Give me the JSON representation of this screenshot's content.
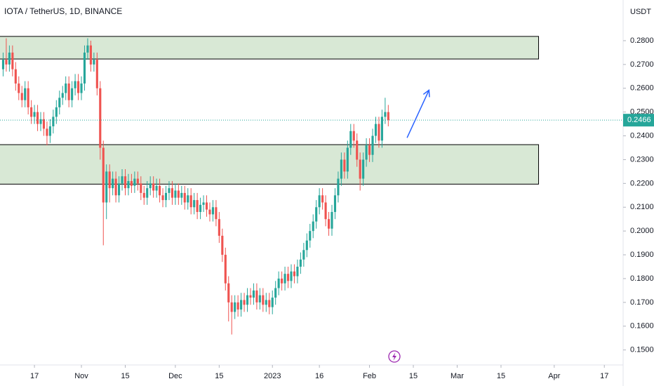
{
  "chart_data": {
    "type": "candlestick",
    "title": "IOTA / TetherUS, 1D, BINANCE",
    "y_axis_label": "USDT",
    "up_color": "#26a69a",
    "down_color": "#ef5350",
    "zone_color": "#d4e6d0",
    "arrow_color": "#2962ff",
    "xlim": [
      "2022-10-06",
      "2023-04-23"
    ],
    "ylim": [
      0.1437,
      0.2971
    ],
    "xticks": [
      {
        "value": "2022-10-17",
        "label": "17"
      },
      {
        "value": "2022-11-01",
        "label": "Nov"
      },
      {
        "value": "2022-11-15",
        "label": "15"
      },
      {
        "value": "2022-12-01",
        "label": "Dec"
      },
      {
        "value": "2022-12-15",
        "label": "15"
      },
      {
        "value": "2023-01-01",
        "label": "2023"
      },
      {
        "value": "2023-01-16",
        "label": "16"
      },
      {
        "value": "2023-02-01",
        "label": "Feb"
      },
      {
        "value": "2023-02-15",
        "label": "15"
      },
      {
        "value": "2023-03-01",
        "label": "Mar"
      },
      {
        "value": "2023-03-15",
        "label": "15"
      },
      {
        "value": "2023-04-01",
        "label": "Apr"
      },
      {
        "value": "2023-04-17",
        "label": "17"
      }
    ],
    "yticks": [
      {
        "value": 0.28,
        "label": "0.2800"
      },
      {
        "value": 0.27,
        "label": "0.2700"
      },
      {
        "value": 0.26,
        "label": "0.2600"
      },
      {
        "value": 0.25,
        "label": "0.2500"
      },
      {
        "value": 0.24,
        "label": "0.2400"
      },
      {
        "value": 0.23,
        "label": "0.2300"
      },
      {
        "value": 0.22,
        "label": "0.2200"
      },
      {
        "value": 0.21,
        "label": "0.2100"
      },
      {
        "value": 0.2,
        "label": "0.2000"
      },
      {
        "value": 0.19,
        "label": "0.1900"
      },
      {
        "value": 0.18,
        "label": "0.1800"
      },
      {
        "value": 0.17,
        "label": "0.1700"
      },
      {
        "value": 0.16,
        "label": "0.1600"
      },
      {
        "value": 0.15,
        "label": "0.1500"
      }
    ],
    "last_price": 0.2466,
    "zones": [
      {
        "top": 0.2818,
        "bottom": 0.2723,
        "end": "2023-03-27"
      },
      {
        "top": 0.2363,
        "bottom": 0.2197,
        "end": "2023-03-27"
      }
    ],
    "arrow": {
      "from": [
        "2023-02-13",
        0.2392
      ],
      "to": [
        "2023-02-20",
        0.2592
      ]
    },
    "x": [
      "2022-10-07",
      "2022-10-08",
      "2022-10-09",
      "2022-10-10",
      "2022-10-11",
      "2022-10-12",
      "2022-10-13",
      "2022-10-14",
      "2022-10-15",
      "2022-10-16",
      "2022-10-17",
      "2022-10-18",
      "2022-10-19",
      "2022-10-20",
      "2022-10-21",
      "2022-10-22",
      "2022-10-23",
      "2022-10-24",
      "2022-10-25",
      "2022-10-26",
      "2022-10-27",
      "2022-10-28",
      "2022-10-29",
      "2022-10-30",
      "2022-10-31",
      "2022-11-01",
      "2022-11-02",
      "2022-11-03",
      "2022-11-04",
      "2022-11-05",
      "2022-11-06",
      "2022-11-07",
      "2022-11-08",
      "2022-11-09",
      "2022-11-10",
      "2022-11-11",
      "2022-11-12",
      "2022-11-13",
      "2022-11-14",
      "2022-11-15",
      "2022-11-16",
      "2022-11-17",
      "2022-11-18",
      "2022-11-19",
      "2022-11-20",
      "2022-11-21",
      "2022-11-22",
      "2022-11-23",
      "2022-11-24",
      "2022-11-25",
      "2022-11-26",
      "2022-11-27",
      "2022-11-28",
      "2022-11-29",
      "2022-11-30",
      "2022-12-01",
      "2022-12-02",
      "2022-12-03",
      "2022-12-04",
      "2022-12-05",
      "2022-12-06",
      "2022-12-07",
      "2022-12-08",
      "2022-12-09",
      "2022-12-10",
      "2022-12-11",
      "2022-12-12",
      "2022-12-13",
      "2022-12-14",
      "2022-12-15",
      "2022-12-16",
      "2022-12-17",
      "2022-12-18",
      "2022-12-19",
      "2022-12-20",
      "2022-12-21",
      "2022-12-22",
      "2022-12-23",
      "2022-12-24",
      "2022-12-25",
      "2022-12-26",
      "2022-12-27",
      "2022-12-28",
      "2022-12-29",
      "2022-12-30",
      "2022-12-31",
      "2023-01-01",
      "2023-01-02",
      "2023-01-03",
      "2023-01-04",
      "2023-01-05",
      "2023-01-06",
      "2023-01-07",
      "2023-01-08",
      "2023-01-09",
      "2023-01-10",
      "2023-01-11",
      "2023-01-12",
      "2023-01-13",
      "2023-01-14",
      "2023-01-15",
      "2023-01-16",
      "2023-01-17",
      "2023-01-18",
      "2023-01-19",
      "2023-01-20",
      "2023-01-21",
      "2023-01-22",
      "2023-01-23",
      "2023-01-24",
      "2023-01-25",
      "2023-01-26",
      "2023-01-27",
      "2023-01-28",
      "2023-01-29",
      "2023-01-30",
      "2023-01-31",
      "2023-02-01",
      "2023-02-02",
      "2023-02-03",
      "2023-02-04",
      "2023-02-05",
      "2023-02-06",
      "2023-02-07"
    ],
    "candles": [
      [
        0.268,
        0.275,
        0.265,
        0.272
      ],
      [
        0.272,
        0.281,
        0.267,
        0.27
      ],
      [
        0.27,
        0.278,
        0.267,
        0.275
      ],
      [
        0.275,
        0.278,
        0.265,
        0.268
      ],
      [
        0.268,
        0.271,
        0.259,
        0.262
      ],
      [
        0.262,
        0.265,
        0.255,
        0.258
      ],
      [
        0.258,
        0.261,
        0.252,
        0.255
      ],
      [
        0.255,
        0.263,
        0.252,
        0.26
      ],
      [
        0.26,
        0.263,
        0.249,
        0.252
      ],
      [
        0.252,
        0.255,
        0.245,
        0.248
      ],
      [
        0.248,
        0.253,
        0.245,
        0.25
      ],
      [
        0.25,
        0.253,
        0.242,
        0.245
      ],
      [
        0.245,
        0.25,
        0.242,
        0.247
      ],
      [
        0.247,
        0.25,
        0.24,
        0.243
      ],
      [
        0.243,
        0.246,
        0.236,
        0.24
      ],
      [
        0.24,
        0.247,
        0.237,
        0.244
      ],
      [
        0.244,
        0.251,
        0.241,
        0.248
      ],
      [
        0.248,
        0.255,
        0.245,
        0.252
      ],
      [
        0.252,
        0.259,
        0.249,
        0.256
      ],
      [
        0.256,
        0.261,
        0.253,
        0.258
      ],
      [
        0.258,
        0.265,
        0.255,
        0.262
      ],
      [
        0.262,
        0.265,
        0.252,
        0.255
      ],
      [
        0.255,
        0.263,
        0.252,
        0.26
      ],
      [
        0.26,
        0.266,
        0.257,
        0.263
      ],
      [
        0.263,
        0.266,
        0.255,
        0.258
      ],
      [
        0.258,
        0.265,
        0.255,
        0.262
      ],
      [
        0.262,
        0.278,
        0.259,
        0.275
      ],
      [
        0.275,
        0.281,
        0.272,
        0.278
      ],
      [
        0.278,
        0.28,
        0.267,
        0.27
      ],
      [
        0.27,
        0.275,
        0.267,
        0.272
      ],
      [
        0.272,
        0.275,
        0.257,
        0.26
      ],
      [
        0.26,
        0.263,
        0.23,
        0.235
      ],
      [
        0.235,
        0.238,
        0.194,
        0.212
      ],
      [
        0.212,
        0.228,
        0.205,
        0.225
      ],
      [
        0.225,
        0.228,
        0.212,
        0.218
      ],
      [
        0.218,
        0.225,
        0.215,
        0.222
      ],
      [
        0.222,
        0.225,
        0.212,
        0.215
      ],
      [
        0.215,
        0.223,
        0.212,
        0.22
      ],
      [
        0.22,
        0.226,
        0.217,
        0.223
      ],
      [
        0.223,
        0.226,
        0.215,
        0.218
      ],
      [
        0.218,
        0.224,
        0.215,
        0.221
      ],
      [
        0.221,
        0.224,
        0.216,
        0.219
      ],
      [
        0.219,
        0.225,
        0.216,
        0.222
      ],
      [
        0.222,
        0.225,
        0.217,
        0.22
      ],
      [
        0.22,
        0.223,
        0.213,
        0.216
      ],
      [
        0.216,
        0.219,
        0.211,
        0.214
      ],
      [
        0.214,
        0.221,
        0.211,
        0.218
      ],
      [
        0.218,
        0.223,
        0.215,
        0.22
      ],
      [
        0.22,
        0.223,
        0.214,
        0.217
      ],
      [
        0.217,
        0.222,
        0.214,
        0.219
      ],
      [
        0.219,
        0.222,
        0.212,
        0.215
      ],
      [
        0.215,
        0.218,
        0.21,
        0.213
      ],
      [
        0.213,
        0.219,
        0.21,
        0.216
      ],
      [
        0.216,
        0.221,
        0.213,
        0.218
      ],
      [
        0.218,
        0.221,
        0.211,
        0.214
      ],
      [
        0.214,
        0.22,
        0.211,
        0.217
      ],
      [
        0.217,
        0.22,
        0.211,
        0.214
      ],
      [
        0.214,
        0.219,
        0.211,
        0.216
      ],
      [
        0.216,
        0.219,
        0.209,
        0.212
      ],
      [
        0.212,
        0.218,
        0.209,
        0.215
      ],
      [
        0.215,
        0.218,
        0.207,
        0.21
      ],
      [
        0.21,
        0.216,
        0.207,
        0.213
      ],
      [
        0.213,
        0.216,
        0.205,
        0.208
      ],
      [
        0.208,
        0.214,
        0.205,
        0.211
      ],
      [
        0.211,
        0.215,
        0.208,
        0.212
      ],
      [
        0.212,
        0.215,
        0.206,
        0.209
      ],
      [
        0.209,
        0.212,
        0.204,
        0.207
      ],
      [
        0.207,
        0.213,
        0.204,
        0.21
      ],
      [
        0.21,
        0.213,
        0.202,
        0.205
      ],
      [
        0.205,
        0.208,
        0.195,
        0.198
      ],
      [
        0.198,
        0.201,
        0.187,
        0.19
      ],
      [
        0.19,
        0.193,
        0.175,
        0.178
      ],
      [
        0.178,
        0.181,
        0.162,
        0.17
      ],
      [
        0.17,
        0.173,
        0.1565,
        0.166
      ],
      [
        0.166,
        0.173,
        0.163,
        0.17
      ],
      [
        0.17,
        0.173,
        0.164,
        0.167
      ],
      [
        0.167,
        0.174,
        0.164,
        0.171
      ],
      [
        0.171,
        0.174,
        0.166,
        0.169
      ],
      [
        0.169,
        0.176,
        0.166,
        0.173
      ],
      [
        0.173,
        0.176,
        0.169,
        0.172
      ],
      [
        0.172,
        0.178,
        0.169,
        0.175
      ],
      [
        0.175,
        0.178,
        0.167,
        0.17
      ],
      [
        0.17,
        0.176,
        0.167,
        0.173
      ],
      [
        0.173,
        0.176,
        0.166,
        0.169
      ],
      [
        0.169,
        0.174,
        0.166,
        0.171
      ],
      [
        0.171,
        0.174,
        0.165,
        0.168
      ],
      [
        0.168,
        0.175,
        0.165,
        0.172
      ],
      [
        0.172,
        0.179,
        0.169,
        0.176
      ],
      [
        0.176,
        0.183,
        0.173,
        0.18
      ],
      [
        0.18,
        0.183,
        0.175,
        0.178
      ],
      [
        0.178,
        0.185,
        0.175,
        0.182
      ],
      [
        0.182,
        0.185,
        0.176,
        0.179
      ],
      [
        0.179,
        0.186,
        0.176,
        0.183
      ],
      [
        0.183,
        0.186,
        0.178,
        0.181
      ],
      [
        0.181,
        0.188,
        0.178,
        0.185
      ],
      [
        0.185,
        0.191,
        0.182,
        0.188
      ],
      [
        0.188,
        0.195,
        0.185,
        0.192
      ],
      [
        0.192,
        0.199,
        0.189,
        0.196
      ],
      [
        0.196,
        0.203,
        0.193,
        0.2
      ],
      [
        0.2,
        0.207,
        0.197,
        0.204
      ],
      [
        0.204,
        0.213,
        0.201,
        0.21
      ],
      [
        0.21,
        0.218,
        0.207,
        0.215
      ],
      [
        0.215,
        0.218,
        0.209,
        0.212
      ],
      [
        0.212,
        0.215,
        0.202,
        0.205
      ],
      [
        0.205,
        0.208,
        0.198,
        0.201
      ],
      [
        0.201,
        0.211,
        0.198,
        0.208
      ],
      [
        0.208,
        0.218,
        0.205,
        0.215
      ],
      [
        0.215,
        0.225,
        0.212,
        0.222
      ],
      [
        0.222,
        0.233,
        0.219,
        0.23
      ],
      [
        0.23,
        0.233,
        0.222,
        0.225
      ],
      [
        0.225,
        0.238,
        0.222,
        0.235
      ],
      [
        0.235,
        0.245,
        0.232,
        0.242
      ],
      [
        0.242,
        0.245,
        0.235,
        0.238
      ],
      [
        0.238,
        0.241,
        0.227,
        0.23
      ],
      [
        0.23,
        0.233,
        0.217,
        0.222
      ],
      [
        0.222,
        0.233,
        0.219,
        0.23
      ],
      [
        0.23,
        0.239,
        0.227,
        0.236
      ],
      [
        0.236,
        0.239,
        0.229,
        0.232
      ],
      [
        0.232,
        0.243,
        0.229,
        0.24
      ],
      [
        0.24,
        0.248,
        0.237,
        0.245
      ],
      [
        0.245,
        0.248,
        0.235,
        0.238
      ],
      [
        0.238,
        0.251,
        0.235,
        0.248
      ],
      [
        0.248,
        0.256,
        0.245,
        0.25
      ],
      [
        0.25,
        0.253,
        0.244,
        0.2466
      ]
    ]
  }
}
